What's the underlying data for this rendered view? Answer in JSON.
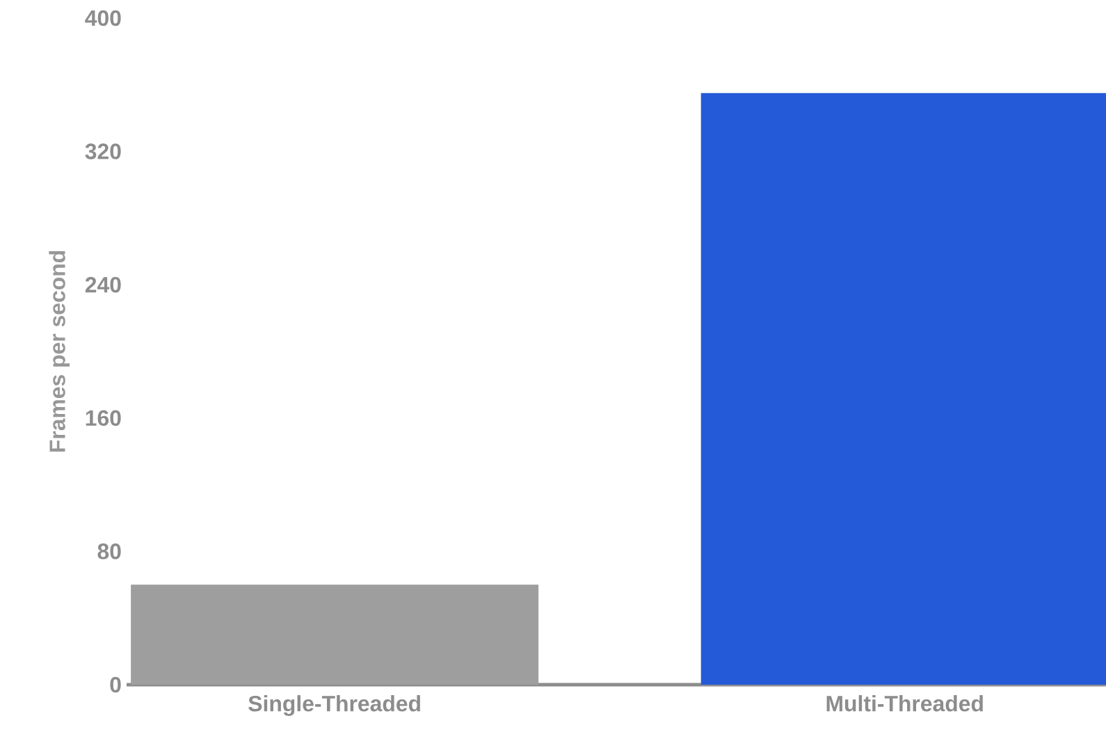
{
  "chart_data": {
    "type": "bar",
    "ylabel": "Frames per second",
    "categories": [
      "Single-Threaded",
      "Multi-Threaded"
    ],
    "values": [
      60,
      355
    ],
    "colors": [
      "#9e9e9e",
      "#2459d8"
    ],
    "ylim": [
      0,
      400
    ],
    "yticks": [
      0,
      80,
      160,
      240,
      320,
      400
    ],
    "grid": false
  }
}
